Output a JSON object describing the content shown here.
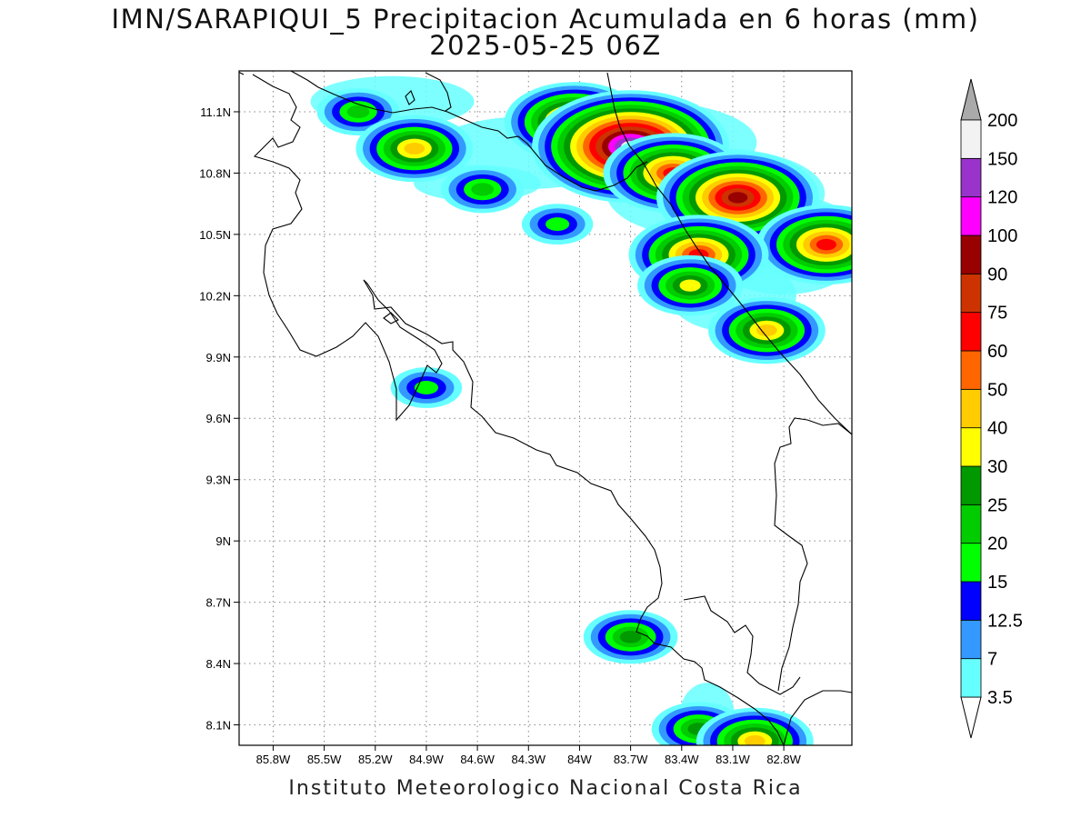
{
  "title": {
    "line1": "IMN/SARAPIQUI_5 Precipitacion Acumulada en 6 horas (mm)",
    "line2": "2025-05-25 06Z"
  },
  "footer": "Instituto Meteorologico Nacional Costa Rica",
  "map": {
    "lon_range": [
      -86.0,
      -82.4
    ],
    "lat_range": [
      8.0,
      11.3
    ],
    "x_ticks": [
      "85.8W",
      "85.5W",
      "85.2W",
      "84.9W",
      "84.6W",
      "84.3W",
      "84W",
      "83.7W",
      "83.4W",
      "83.1W",
      "82.8W"
    ],
    "y_ticks": [
      "11.1N",
      "10.8N",
      "10.5N",
      "10.2N",
      "9.9N",
      "9.6N",
      "9.3N",
      "9N",
      "8.7N",
      "8.4N",
      "8.1N"
    ],
    "gridlines": "dotted",
    "precipitation_cells": [
      {
        "lon": -85.3,
        "lat": 11.1,
        "mm": 20
      },
      {
        "lon": -84.97,
        "lat": 10.92,
        "mm": 40
      },
      {
        "lon": -84.57,
        "lat": 10.72,
        "mm": 20
      },
      {
        "lon": -84.13,
        "lat": 10.55,
        "mm": 15
      },
      {
        "lon": -84.03,
        "lat": 11.05,
        "mm": 60
      },
      {
        "lon": -83.7,
        "lat": 10.93,
        "mm": 150
      },
      {
        "lon": -83.45,
        "lat": 10.8,
        "mm": 60
      },
      {
        "lon": -83.07,
        "lat": 10.68,
        "mm": 90
      },
      {
        "lon": -82.55,
        "lat": 10.45,
        "mm": 60
      },
      {
        "lon": -83.3,
        "lat": 10.4,
        "mm": 60
      },
      {
        "lon": -83.35,
        "lat": 10.25,
        "mm": 30
      },
      {
        "lon": -82.9,
        "lat": 10.03,
        "mm": 40
      },
      {
        "lon": -84.9,
        "lat": 9.75,
        "mm": 15
      },
      {
        "lon": -83.7,
        "lat": 8.53,
        "mm": 25
      },
      {
        "lon": -83.3,
        "lat": 8.08,
        "mm": 25
      },
      {
        "lon": -82.97,
        "lat": 8.02,
        "mm": 40
      }
    ]
  },
  "colorbar": {
    "labels": [
      "3.5",
      "7",
      "12.5",
      "15",
      "20",
      "25",
      "30",
      "40",
      "50",
      "60",
      "75",
      "90",
      "100",
      "120",
      "150",
      "200"
    ],
    "colors": [
      "#66ffff",
      "#3399ff",
      "#0000ff",
      "#00ff00",
      "#00cc00",
      "#009900",
      "#ffff00",
      "#ffcc00",
      "#ff6600",
      "#ff0000",
      "#cc3300",
      "#990000",
      "#ff00ff",
      "#9933cc",
      "#f2f2f2"
    ],
    "above_max_color": "#aaaaaa"
  }
}
